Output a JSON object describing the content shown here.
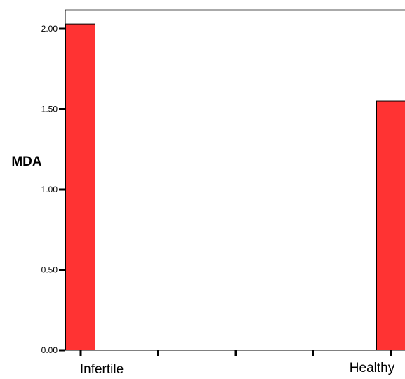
{
  "chart_data": {
    "type": "bar",
    "categories": [
      "Infertile",
      "Healthy"
    ],
    "series": [
      {
        "values": [
          2.03,
          1.55
        ]
      }
    ],
    "ylabel": "MDA",
    "xlabel": "",
    "ylim": [
      0,
      2.1
    ],
    "yticks": [
      0,
      0.5,
      1.0,
      1.5,
      2.0
    ],
    "ytick_labels": [
      "0.00",
      "0.50",
      "1.00",
      "1.50",
      "2.00"
    ],
    "grid": false,
    "colors": {
      "bar_fill": "#ff3333",
      "bar_stroke": "#000000"
    }
  }
}
